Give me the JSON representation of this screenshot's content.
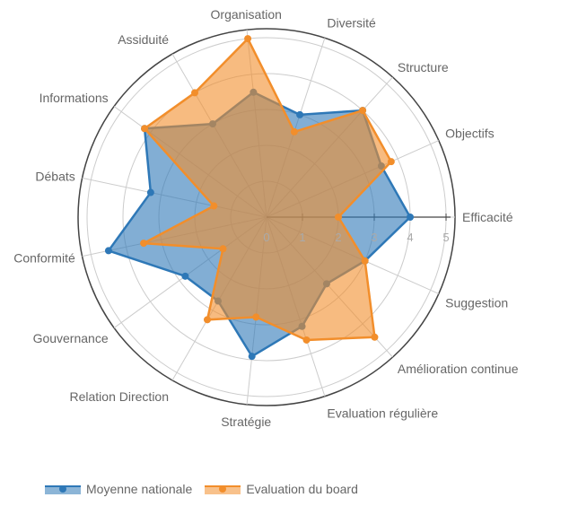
{
  "chart_data": {
    "type": "radar",
    "axes": [
      "Efficacité",
      "Objectifs",
      "Structure",
      "Diversité",
      "Organisation",
      "Assiduité",
      "Informations",
      "Débats",
      "Conformité",
      "Gouvernance",
      "Relation Direction",
      "Stratégie",
      "Evaluation régulière",
      "Amélioration continue",
      "Suggestion"
    ],
    "range": [
      0,
      5
    ],
    "ticks": [
      "0",
      "1",
      "2",
      "3",
      "4",
      "5"
    ],
    "series": [
      {
        "name": "Moyenne nationale",
        "color": "#2e78b7",
        "values": [
          4.0,
          3.5,
          4.0,
          3.0,
          3.5,
          3.0,
          4.2,
          3.3,
          4.5,
          2.8,
          2.7,
          3.9,
          3.2,
          2.5,
          3.0
        ]
      },
      {
        "name": "Evaluation du board",
        "color": "#f28e2b",
        "values": [
          2.0,
          3.8,
          4.0,
          2.5,
          5.0,
          4.0,
          4.2,
          1.5,
          3.5,
          1.5,
          3.3,
          2.8,
          3.6,
          4.5,
          3.0
        ]
      }
    ],
    "legend_position": "bottom-left"
  }
}
